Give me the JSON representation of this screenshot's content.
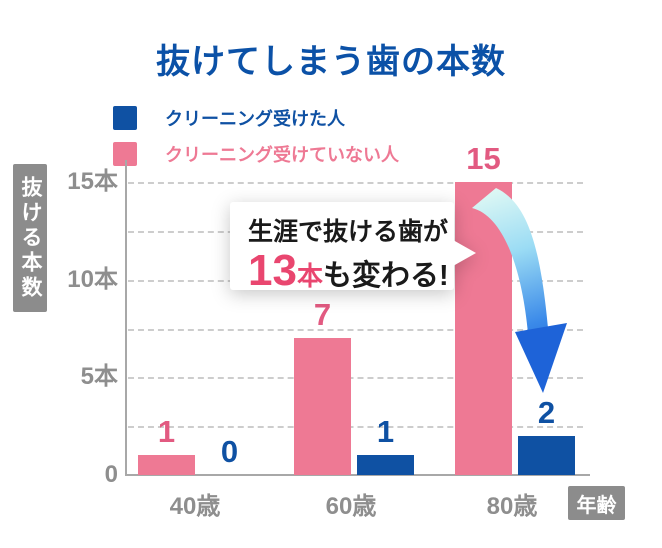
{
  "title": "抜けてしまう歯の本数",
  "legend": [
    {
      "label": "クリーニング受けた人",
      "color": "#0f51a3"
    },
    {
      "label": "クリーニング受けていない人",
      "color": "#ee7994"
    }
  ],
  "y_axis_title": "抜ける本数",
  "x_axis_title": "年齢",
  "callout": {
    "line1": "生涯で抜ける歯が",
    "big_number": "13",
    "unit": "本",
    "rest": "も変わる!"
  },
  "chart_data": {
    "type": "bar",
    "title": "抜けてしまう歯の本数",
    "categories": [
      "40歳",
      "60歳",
      "80歳"
    ],
    "series": [
      {
        "name": "クリーニング受けていない人",
        "color": "#ee7994",
        "label_color": "#e25a81",
        "values": [
          1,
          7,
          15
        ]
      },
      {
        "name": "クリーニング受けた人",
        "color": "#0f51a3",
        "label_color": "#0f51a3",
        "values": [
          0,
          1,
          2
        ]
      }
    ],
    "xlabel": "年齢",
    "ylabel": "抜ける本数",
    "ylim": [
      0,
      15
    ],
    "yticks": [
      {
        "value": 0,
        "label": "0"
      },
      {
        "value": 5,
        "label": "5本"
      },
      {
        "value": 10,
        "label": "10本"
      },
      {
        "value": 15,
        "label": "15本"
      }
    ],
    "grid_step": 2.5,
    "grid_style": "dashed",
    "legend_position": "top-left",
    "annotation": "生涯で抜ける歯が13本も変わる!"
  },
  "colors": {
    "title_blue": "#0b51a7",
    "bar_pink": "#ee7994",
    "bar_blue": "#0f51a3",
    "callout_highlight": "#e9466f",
    "axis_gray": "#a8a8a8",
    "grid_gray": "#cdcdcd",
    "tick_text_gray": "#8e8e8e",
    "box_gray": "#8c8c8c",
    "arrow_gradient": [
      "#e2faf4",
      "#9bdcf4",
      "#3b8ae9",
      "#1559cf"
    ]
  }
}
